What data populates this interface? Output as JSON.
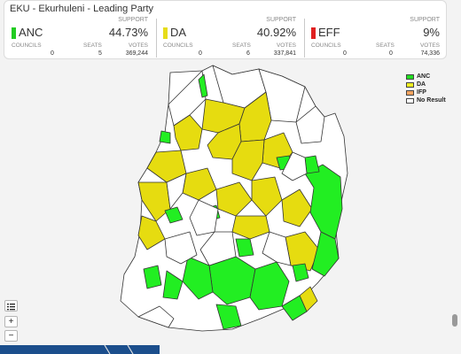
{
  "panel": {
    "title": "EKU - Ekurhuleni - Leading Party",
    "parties": [
      {
        "name": "ANC",
        "support_label": "SUPPORT",
        "support": "44.73%",
        "councils_label": "COUNCILS",
        "seats_label": "SEATS",
        "votes_label": "VOTES",
        "councils": "0",
        "seats": "5",
        "votes": "369,244",
        "color": "#22cc22"
      },
      {
        "name": "DA",
        "support_label": "SUPPORT",
        "support": "40.92%",
        "councils_label": "COUNCILS",
        "seats_label": "SEATS",
        "votes_label": "VOTES",
        "councils": "0",
        "seats": "6",
        "votes": "337,841",
        "color": "#e6dc1a"
      },
      {
        "name": "EFF",
        "support_label": "SUPPORT",
        "support": "9%",
        "councils_label": "COUNCILS",
        "seats_label": "SEATS",
        "votes_label": "VOTES",
        "councils": "0",
        "seats": "0",
        "votes": "74,336",
        "color": "#e02020"
      }
    ]
  },
  "legend": {
    "items": [
      {
        "label": "ANC",
        "color": "#22dd22"
      },
      {
        "label": "DA",
        "color": "#eeee22"
      },
      {
        "label": "IFP",
        "color": "#f4a460"
      },
      {
        "label": "No Result",
        "color": "#ffffff"
      }
    ]
  },
  "map_colors": {
    "anc": "#22ee22",
    "da": "#e6dc10",
    "none": "#ffffff",
    "border": "#333333"
  },
  "controls": {
    "layers_icon": "list-icon",
    "zoom_in": "+",
    "zoom_out": "−"
  }
}
